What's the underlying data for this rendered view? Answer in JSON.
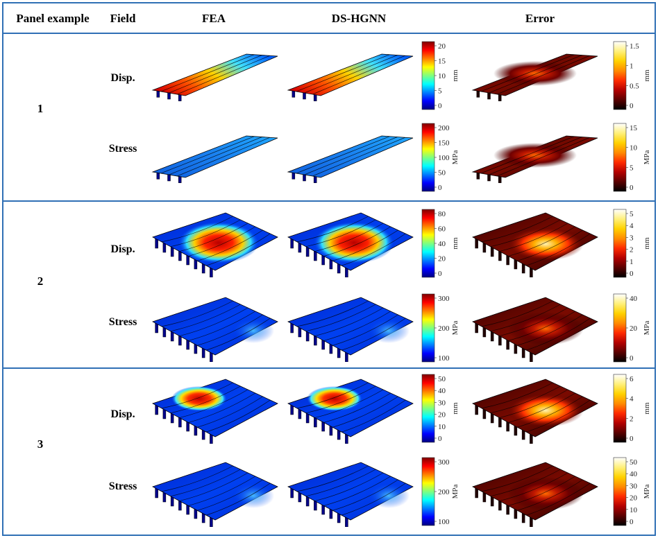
{
  "header": {
    "panel_example": "Panel example",
    "field": "Field",
    "fea": "FEA",
    "dshgnn": "DS-HGNN",
    "error": "Error"
  },
  "colors": {
    "border": "#2f6fb5"
  },
  "rows": [
    {
      "id": "1",
      "fields": [
        {
          "label": "Disp.",
          "shape": "long",
          "cbar_main": {
            "ticks": [
              "20",
              "15",
              "10",
              "5",
              "0"
            ],
            "unit": "mm",
            "cmap": "jet"
          },
          "cbar_err": {
            "ticks": [
              "1.5",
              "1",
              "0.5",
              "0"
            ],
            "unit": "mm",
            "cmap": "hot"
          }
        },
        {
          "label": "Stress",
          "shape": "long",
          "cbar_main": {
            "ticks": [
              "200",
              "150",
              "100",
              "50",
              "0"
            ],
            "unit": "MPa",
            "cmap": "jet"
          },
          "cbar_err": {
            "ticks": [
              "15",
              "10",
              "5",
              "0"
            ],
            "unit": "MPa",
            "cmap": "hot"
          }
        }
      ]
    },
    {
      "id": "2",
      "fields": [
        {
          "label": "Disp.",
          "shape": "square",
          "cbar_main": {
            "ticks": [
              "80",
              "60",
              "40",
              "20",
              "0"
            ],
            "unit": "mm",
            "cmap": "jet"
          },
          "cbar_err": {
            "ticks": [
              "5",
              "4",
              "3",
              "2",
              "1",
              "0"
            ],
            "unit": "mm",
            "cmap": "hot"
          }
        },
        {
          "label": "Stress",
          "shape": "square",
          "cbar_main": {
            "ticks": [
              "300",
              "200",
              "100"
            ],
            "unit": "MPa",
            "cmap": "jet"
          },
          "cbar_err": {
            "ticks": [
              "40",
              "20",
              "0"
            ],
            "unit": "MPa",
            "cmap": "hot"
          }
        }
      ]
    },
    {
      "id": "3",
      "fields": [
        {
          "label": "Disp.",
          "shape": "square",
          "cbar_main": {
            "ticks": [
              "50",
              "40",
              "30",
              "20",
              "10",
              "0"
            ],
            "unit": "mm",
            "cmap": "jet"
          },
          "cbar_err": {
            "ticks": [
              "6",
              "4",
              "2",
              "0"
            ],
            "unit": "mm",
            "cmap": "hot"
          }
        },
        {
          "label": "Stress",
          "shape": "square",
          "cbar_main": {
            "ticks": [
              "300",
              "200",
              "100"
            ],
            "unit": "MPa",
            "cmap": "jet"
          },
          "cbar_err": {
            "ticks": [
              "50",
              "40",
              "30",
              "20",
              "10",
              "0"
            ],
            "unit": "MPa",
            "cmap": "hot"
          }
        }
      ]
    }
  ]
}
